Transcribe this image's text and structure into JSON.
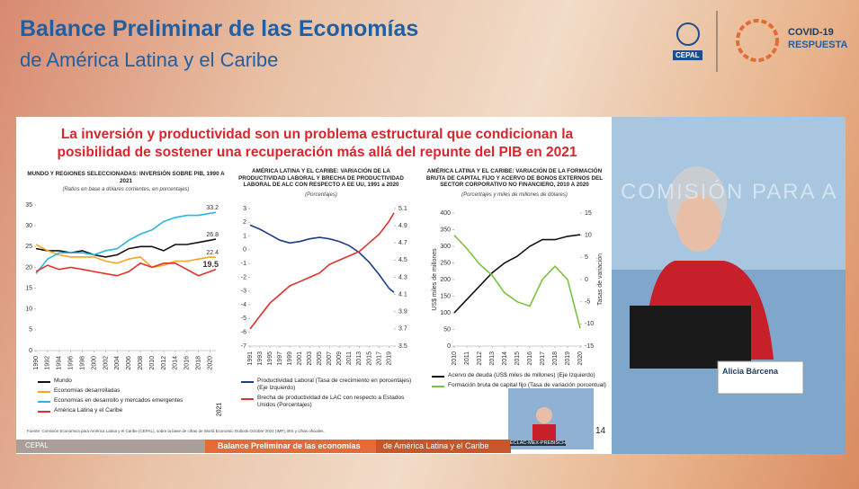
{
  "header": {
    "title": "Balance Preliminar de las Economías",
    "subtitle": "de América Latina y el Caribe",
    "logo_left": "CEPAL",
    "logo_right_1": "COVID-19",
    "logo_right_2": "RESPUESTA"
  },
  "slide": {
    "title": "La inversión y productividad son un problema estructural que condicionan la posibilidad de sostener una recuperación más allá del repunte del PIB en 2021",
    "source": "Fuente: Comisión Económica para América Latina y el Caribe (CEPAL), sobre la base de cifras de World Economic Outlook October 2021 (IMF), BIS y cifras oficiales.",
    "footer_logo": "CEPAL",
    "footer_1": "Balance Preliminar de las economías",
    "footer_2": "de América Latina y el Caribe",
    "page": "14"
  },
  "video": {
    "wall": "COMISIÓN PARA A",
    "nameplate": "Alicia Bárcena",
    "inset": "ECLAC-MEX-PREBISCH"
  },
  "chart_data": [
    {
      "type": "line",
      "title": "MUNDO Y REGIONES SELECCIONADAS: INVERSIÓN SOBRE PIB, 1990 A 2021",
      "subtitle": "(Ratios en base a dólares corrientes, en porcentajes)",
      "note": "2021",
      "end_labels": true,
      "x": [
        1990,
        1992,
        1994,
        1996,
        1998,
        2000,
        2002,
        2004,
        2006,
        2008,
        2010,
        2012,
        2014,
        2016,
        2018,
        2020,
        2021
      ],
      "xlim": [
        1990,
        2021
      ],
      "xticks": [
        1990,
        1992,
        1994,
        1996,
        1998,
        2000,
        2002,
        2004,
        2006,
        2008,
        2010,
        2012,
        2014,
        2016,
        2018,
        2020
      ],
      "ylim": [
        0,
        35
      ],
      "yticks": [
        0,
        5,
        10,
        15,
        20,
        25,
        30,
        35
      ],
      "series": [
        {
          "name": "Mundo",
          "color": "#111111",
          "values": [
            24.5,
            24,
            24,
            23.5,
            24,
            23,
            22.5,
            23,
            24.5,
            25,
            25,
            24,
            25.5,
            25.5,
            26,
            26.5,
            26.8
          ]
        },
        {
          "name": "Economías desarrolladas",
          "color": "#f5a623",
          "values": [
            25.5,
            24,
            23,
            22.5,
            22.5,
            22.5,
            21.5,
            21,
            22,
            22.5,
            20,
            20.5,
            21.5,
            21.5,
            22,
            22.5,
            22.4
          ]
        },
        {
          "name": "Economías en desarrollo y mercados emergentes",
          "color": "#2bb6e0",
          "values": [
            18.5,
            22,
            23.5,
            23.5,
            23.5,
            23,
            24,
            24.5,
            26.5,
            28,
            29,
            31,
            32,
            32.5,
            32.5,
            33,
            33.2
          ]
        },
        {
          "name": "América Latina y el Caribe",
          "color": "#e0312b",
          "values": [
            19,
            20.5,
            19.5,
            20,
            19.5,
            19,
            18.5,
            18,
            19,
            21,
            20,
            21,
            21,
            19.5,
            18,
            19,
            19.5
          ]
        }
      ]
    },
    {
      "type": "line",
      "title": "AMÉRICA LATINA Y EL CARIBE: VARIACIÓN DE LA PRODUCTIVIDAD LABORAL Y BRECHA DE PRODUCTIVIDAD LABORAL DE ALC CON RESPECTO A EE UU, 1991 a 2020",
      "subtitle": "(Porcentajes)",
      "x": [
        1991,
        1993,
        1995,
        1997,
        1999,
        2001,
        2003,
        2005,
        2007,
        2009,
        2011,
        2013,
        2015,
        2017,
        2019,
        2020
      ],
      "xlim": [
        1991,
        2020
      ],
      "xticks": [
        1991,
        1993,
        1995,
        1997,
        1999,
        2001,
        2003,
        2005,
        2007,
        2009,
        2011,
        2013,
        2015,
        2017,
        2019
      ],
      "ylim": [
        -7,
        3
      ],
      "yticks": [
        -7,
        -6,
        -5,
        -4,
        -3,
        -2,
        -1,
        0,
        1,
        2,
        3
      ],
      "y2lim": [
        3.5,
        5.1
      ],
      "y2ticks": [
        3.5,
        3.7,
        3.9,
        4.1,
        4.3,
        4.5,
        4.7,
        4.9,
        5.1
      ],
      "series": [
        {
          "name": "Productividad Laboral (Tasa de crecimiento en porcentajes) (Eje Izquierdo)",
          "color": "#1f3c88",
          "values": [
            1.8,
            1.5,
            1.1,
            0.7,
            0.5,
            0.6,
            0.8,
            0.9,
            0.8,
            0.6,
            0.3,
            -0.2,
            -0.9,
            -1.8,
            -2.8,
            -3.1
          ]
        },
        {
          "name": "Brecha de productividad de LAC con respecto a Estados Unidos (Porcentajes)",
          "color": "#e0312b",
          "axis": "y2",
          "values": [
            3.7,
            3.85,
            4.0,
            4.1,
            4.2,
            4.25,
            4.3,
            4.35,
            4.45,
            4.5,
            4.55,
            4.6,
            4.7,
            4.8,
            4.95,
            5.05
          ]
        }
      ]
    },
    {
      "type": "line",
      "title": "AMÉRICA LATINA Y EL CARIBE: VARIACIÓN DE LA FORMACIÓN BRUTA DE CAPITAL FIJO Y ACERVO DE BONOS EXTERNOS DEL SECTOR CORPORATIVO NO FINANCIERO, 2010 A 2020",
      "subtitle": "(Porcentajes y miles de millones de dólares)",
      "ylabel": "US$ miles de millones",
      "y2label": "Tasas de variación",
      "x": [
        2010,
        2011,
        2012,
        2013,
        2014,
        2015,
        2016,
        2017,
        2018,
        2019,
        2020
      ],
      "xlim": [
        2010,
        2020
      ],
      "xticks": [
        2010,
        2011,
        2012,
        2013,
        2014,
        2015,
        2016,
        2017,
        2018,
        2019,
        2020
      ],
      "ylim": [
        0,
        400
      ],
      "yticks": [
        0,
        50,
        100,
        150,
        200,
        250,
        300,
        350,
        400
      ],
      "y2lim": [
        -15,
        15
      ],
      "y2ticks": [
        -15,
        -10,
        -5,
        0,
        5,
        10,
        15
      ],
      "series": [
        {
          "name": "Acervo de deuda (US$ miles de millones) (Eje Izquierdo)",
          "color": "#111111",
          "values": [
            100,
            140,
            180,
            220,
            250,
            270,
            300,
            320,
            320,
            330,
            335
          ]
        },
        {
          "name": "Formación bruta de capital fijo (Tasa de variación porcentual)",
          "color": "#7cc242",
          "axis": "y2",
          "values": [
            10,
            7,
            3.5,
            1,
            -3,
            -5,
            -6,
            0,
            3,
            0,
            -11
          ]
        }
      ]
    }
  ]
}
